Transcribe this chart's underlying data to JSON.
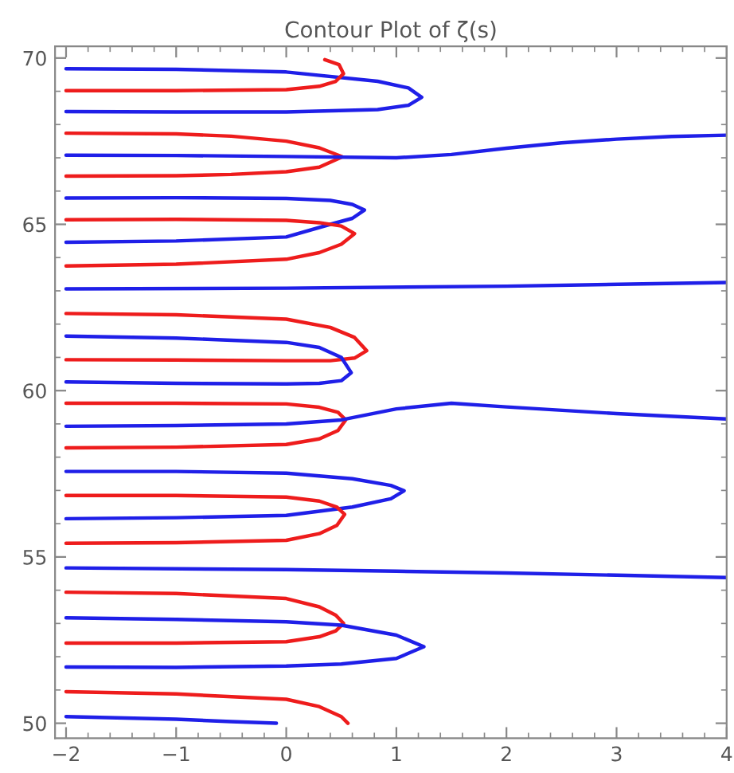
{
  "chart_data": {
    "type": "line",
    "title": "Contour Plot of ζ(s)",
    "xlim": [
      -2.1,
      4
    ],
    "ylim": [
      49.55,
      70.35
    ],
    "xticks": [
      {
        "value": -2,
        "label": "−2"
      },
      {
        "value": -1,
        "label": "−1"
      },
      0,
      1,
      2,
      3,
      4
    ],
    "yticks": [
      50,
      55,
      60,
      65,
      70
    ],
    "grid": false,
    "legend": false,
    "marker": "none",
    "line_style": "solid",
    "series": [
      {
        "color": "#1f1fe8",
        "x": [
          -2,
          -1,
          0,
          0.83,
          1.11,
          1.23,
          1.11,
          0.83,
          0,
          -1,
          -2
        ],
        "values": [
          69.68,
          69.66,
          69.58,
          69.3,
          69.1,
          68.82,
          68.58,
          68.45,
          68.38,
          68.38,
          68.39
        ]
      },
      {
        "color": "#ee1c1c",
        "x": [
          -2,
          -1,
          0,
          0.3,
          0.45,
          0.52,
          0.48,
          0.35
        ],
        "values": [
          69.02,
          69.02,
          69.05,
          69.15,
          69.3,
          69.53,
          69.8,
          69.95
        ]
      },
      {
        "color": "#ee1c1c",
        "x": [
          -2,
          -1,
          -0.5,
          0,
          0.3,
          0.51,
          0.3,
          0,
          -0.5,
          -1,
          -2
        ],
        "values": [
          67.74,
          67.72,
          67.65,
          67.5,
          67.3,
          67.03,
          66.72,
          66.58,
          66.5,
          66.46,
          66.45
        ]
      },
      {
        "color": "#1f1fe8",
        "x": [
          -2,
          -1,
          0,
          1,
          1.5,
          2,
          2.5,
          3,
          3.5,
          4
        ],
        "values": [
          67.08,
          67.07,
          67.04,
          67.0,
          67.1,
          67.29,
          67.45,
          67.56,
          67.64,
          67.68
        ]
      },
      {
        "color": "#1f1fe8",
        "x": [
          -2,
          -1,
          0,
          0.4,
          0.6,
          0.71,
          0.6,
          0.4,
          0,
          -1,
          -2
        ],
        "values": [
          65.79,
          65.8,
          65.78,
          65.72,
          65.6,
          65.43,
          65.18,
          65.0,
          64.62,
          64.5,
          64.46
        ]
      },
      {
        "color": "#ee1c1c",
        "x": [
          -2,
          -1,
          0,
          0.3,
          0.5,
          0.62,
          0.5,
          0.3,
          0,
          -1,
          -2
        ],
        "values": [
          65.14,
          65.15,
          65.12,
          65.05,
          64.95,
          64.72,
          64.4,
          64.15,
          63.95,
          63.8,
          63.75
        ]
      },
      {
        "color": "#1f1fe8",
        "x": [
          -2,
          0,
          2,
          4
        ],
        "values": [
          63.06,
          63.08,
          63.14,
          63.25
        ]
      },
      {
        "color": "#ee1c1c",
        "x": [
          -2,
          -1,
          0,
          0.4,
          0.62,
          0.73,
          0.62,
          0.4,
          0,
          -1,
          -2
        ],
        "values": [
          62.32,
          62.28,
          62.15,
          61.9,
          61.6,
          61.2,
          60.98,
          60.9,
          60.9,
          60.92,
          60.93
        ]
      },
      {
        "color": "#1f1fe8",
        "x": [
          -2,
          -1,
          0,
          0.3,
          0.5,
          0.59,
          0.5,
          0.3,
          0,
          -1,
          -2
        ],
        "values": [
          61.64,
          61.58,
          61.45,
          61.3,
          61.0,
          60.54,
          60.3,
          60.22,
          60.2,
          60.22,
          60.26
        ]
      },
      {
        "color": "#ee1c1c",
        "x": [
          -2,
          -1,
          0,
          0.3,
          0.47,
          0.54,
          0.47,
          0.3,
          0,
          -1,
          -2
        ],
        "values": [
          59.62,
          59.62,
          59.6,
          59.5,
          59.35,
          59.12,
          58.8,
          58.55,
          58.38,
          58.3,
          58.28
        ]
      },
      {
        "color": "#1f1fe8",
        "x": [
          -2,
          -1,
          0,
          0.5,
          1,
          1.5,
          2,
          3,
          4
        ],
        "values": [
          58.93,
          58.95,
          59.0,
          59.12,
          59.45,
          59.62,
          59.51,
          59.31,
          59.15
        ]
      },
      {
        "color": "#1f1fe8",
        "x": [
          -2,
          -1,
          0,
          0.6,
          0.95,
          1.07,
          0.95,
          0.6,
          0,
          -1,
          -2
        ],
        "values": [
          57.57,
          57.57,
          57.52,
          57.35,
          57.15,
          56.99,
          56.75,
          56.5,
          56.25,
          56.18,
          56.15
        ]
      },
      {
        "color": "#ee1c1c",
        "x": [
          -2,
          -1,
          0,
          0.3,
          0.46,
          0.53,
          0.46,
          0.3,
          0,
          -1,
          -2
        ],
        "values": [
          56.85,
          56.85,
          56.8,
          56.68,
          56.5,
          56.28,
          55.95,
          55.7,
          55.5,
          55.43,
          55.41
        ]
      },
      {
        "color": "#1f1fe8",
        "x": [
          -2,
          0,
          1,
          2,
          3,
          4
        ],
        "values": [
          54.67,
          54.62,
          54.57,
          54.52,
          54.45,
          54.38
        ]
      },
      {
        "color": "#ee1c1c",
        "x": [
          -2,
          -1,
          0,
          0.3,
          0.45,
          0.52,
          0.45,
          0.3,
          0,
          -1,
          -2
        ],
        "values": [
          53.94,
          53.9,
          53.75,
          53.5,
          53.25,
          53.0,
          52.78,
          52.6,
          52.45,
          52.41,
          52.41
        ]
      },
      {
        "color": "#1f1fe8",
        "x": [
          -2,
          -1,
          0,
          0.5,
          1.0,
          1.25,
          1.0,
          0.5,
          0,
          -1,
          -2
        ],
        "values": [
          53.17,
          53.12,
          53.05,
          52.95,
          52.65,
          52.3,
          51.95,
          51.78,
          51.72,
          51.68,
          51.69
        ]
      },
      {
        "color": "#ee1c1c",
        "x": [
          -2,
          -1,
          0,
          0.3,
          0.5,
          0.56
        ],
        "values": [
          50.95,
          50.88,
          50.72,
          50.5,
          50.2,
          50.0
        ]
      },
      {
        "color": "#1f1fe8",
        "x": [
          -2,
          -1,
          -0.5,
          -0.09
        ],
        "values": [
          50.2,
          50.12,
          50.05,
          50.0
        ]
      }
    ]
  }
}
